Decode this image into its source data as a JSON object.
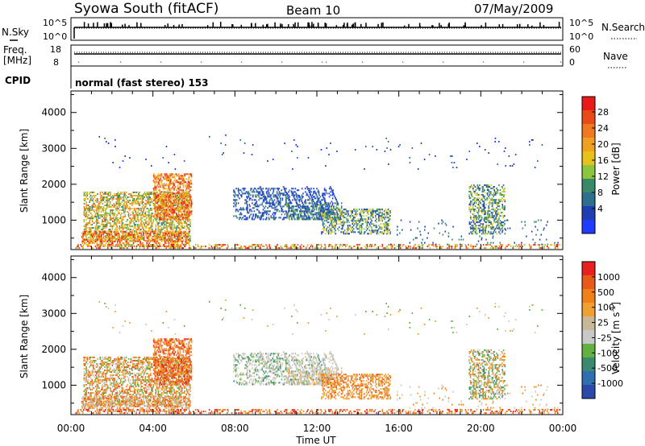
{
  "header": {
    "station": "Syowa South (fitACF)",
    "beam": "Beam 10",
    "date": "07/May/2009"
  },
  "panel_labels": {
    "nsky": "N.Sky",
    "nsearch": "N.Search",
    "freq_line1": "Freq.",
    "freq_line2": "[MHz]",
    "nave": "Nave",
    "cpid": "CPID",
    "cpid_text": "normal (fast stereo) 153"
  },
  "noise_axis": {
    "left": [
      "10^5",
      "10^0"
    ],
    "right": [
      "10^5",
      "10^0"
    ]
  },
  "freq_axis": {
    "left": [
      "18",
      "8"
    ],
    "right": [
      "60",
      "0"
    ]
  },
  "colors": {
    "power_scale": [
      "#1f3cff",
      "#1f3fb0",
      "#2e6e8e",
      "#3a8a6a",
      "#8cc63f",
      "#e6c21a",
      "#f0a020",
      "#f07820",
      "#e84a1a",
      "#e81a1a"
    ],
    "velocity_scale": [
      "#2a4aa8",
      "#2e6fb0",
      "#3a8a70",
      "#62b040",
      "#c8c8c8",
      "#c8b898",
      "#f0a030",
      "#f08018",
      "#e85a18",
      "#e82020"
    ]
  },
  "chart_data": [
    {
      "type": "heatmap",
      "name": "power",
      "xlabel": "",
      "ylabel": "Slant Range [km]",
      "ylim": [
        180,
        4600
      ],
      "xlim_hours": [
        0,
        24
      ],
      "yticks": [
        "4000",
        "3000",
        "2000",
        "1000"
      ],
      "colorbar": {
        "label": "Power [dB]",
        "ticks": [
          "28",
          "24",
          "20",
          "16",
          "12",
          "8",
          "4"
        ],
        "range": [
          0,
          30
        ]
      }
    },
    {
      "type": "heatmap",
      "name": "velocity",
      "xlabel": "Time UT",
      "ylabel": "Slant Range [km]",
      "ylim": [
        180,
        4600
      ],
      "xlim_hours": [
        0,
        24
      ],
      "yticks": [
        "4000",
        "3000",
        "2000",
        "1000"
      ],
      "xticks": [
        "00:00",
        "04:00",
        "08:00",
        "12:00",
        "16:00",
        "20:00",
        "00:00"
      ],
      "colorbar": {
        "label": "Velocity [m s",
        "label_sup": "-1",
        "label_end": "]",
        "ticks": [
          "1000",
          "500",
          "100",
          "25",
          "-25",
          "-100",
          "-500",
          "-1000"
        ]
      }
    }
  ]
}
